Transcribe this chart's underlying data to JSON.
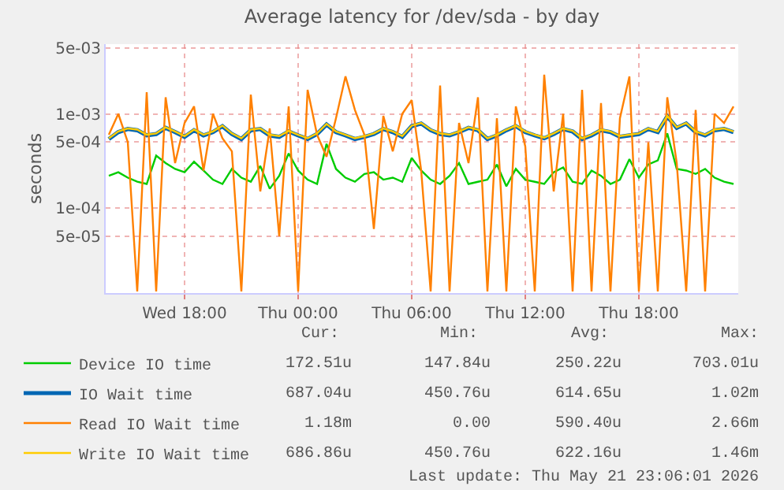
{
  "chart_data": {
    "type": "line",
    "title": "Average latency for /dev/sda - by day",
    "ylabel": "seconds",
    "x": [
      "2026-05-20T14:00",
      "2026-05-20T14:30",
      "2026-05-20T15:00",
      "2026-05-20T15:30",
      "2026-05-20T16:00",
      "2026-05-20T16:30",
      "2026-05-20T17:00",
      "2026-05-20T17:30",
      "2026-05-20T18:00",
      "2026-05-20T18:30",
      "2026-05-20T19:00",
      "2026-05-20T19:30",
      "2026-05-20T20:00",
      "2026-05-20T20:30",
      "2026-05-20T21:00",
      "2026-05-20T21:30",
      "2026-05-20T22:00",
      "2026-05-20T22:30",
      "2026-05-20T23:00",
      "2026-05-20T23:30",
      "2026-05-21T00:00",
      "2026-05-21T00:30",
      "2026-05-21T01:00",
      "2026-05-21T01:30",
      "2026-05-21T02:00",
      "2026-05-21T02:30",
      "2026-05-21T03:00",
      "2026-05-21T03:30",
      "2026-05-21T04:00",
      "2026-05-21T04:30",
      "2026-05-21T05:00",
      "2026-05-21T05:30",
      "2026-05-21T06:00",
      "2026-05-21T06:30",
      "2026-05-21T07:00",
      "2026-05-21T07:30",
      "2026-05-21T08:00",
      "2026-05-21T08:30",
      "2026-05-21T09:00",
      "2026-05-21T09:30",
      "2026-05-21T10:00",
      "2026-05-21T10:30",
      "2026-05-21T11:00",
      "2026-05-21T11:30",
      "2026-05-21T12:00",
      "2026-05-21T12:30",
      "2026-05-21T13:00",
      "2026-05-21T13:30",
      "2026-05-21T14:00",
      "2026-05-21T14:30",
      "2026-05-21T15:00",
      "2026-05-21T15:30",
      "2026-05-21T16:00",
      "2026-05-21T16:30",
      "2026-05-21T17:00",
      "2026-05-21T17:30",
      "2026-05-21T18:00",
      "2026-05-21T18:30",
      "2026-05-21T19:00",
      "2026-05-21T19:30",
      "2026-05-21T20:00",
      "2026-05-21T20:30",
      "2026-05-21T21:00",
      "2026-05-21T21:30",
      "2026-05-21T22:00",
      "2026-05-21T22:30",
      "2026-05-21T23:00"
    ],
    "series": [
      {
        "name": "Device IO time",
        "color": "#00cc00",
        "values": [
          0.00022,
          0.00024,
          0.00021,
          0.00019,
          0.00018,
          0.00036,
          0.0003,
          0.00026,
          0.00024,
          0.00031,
          0.00025,
          0.0002,
          0.00018,
          0.00026,
          0.00021,
          0.00019,
          0.00028,
          0.00016,
          0.00022,
          0.00038,
          0.00025,
          0.0002,
          0.00018,
          0.00048,
          0.00026,
          0.00021,
          0.00019,
          0.00023,
          0.00024,
          0.0002,
          0.00021,
          0.00019,
          0.00034,
          0.00025,
          0.0002,
          0.00018,
          0.00022,
          0.0003,
          0.00018,
          0.00019,
          0.0002,
          0.00029,
          0.00017,
          0.00026,
          0.0002,
          0.00019,
          0.00018,
          0.00024,
          0.00027,
          0.00019,
          0.00018,
          0.00025,
          0.00022,
          0.00018,
          0.0002,
          0.00033,
          0.00021,
          0.00029,
          0.00032,
          0.00062,
          0.00026,
          0.00025,
          0.00023,
          0.00026,
          0.00021,
          0.00019,
          0.00018
        ]
      },
      {
        "name": "IO Wait time",
        "color": "#0066b3",
        "values": [
          0.00054,
          0.00064,
          0.00069,
          0.00067,
          0.00059,
          0.00061,
          0.00071,
          0.00064,
          0.00057,
          0.00067,
          0.00059,
          0.00064,
          0.00074,
          0.00061,
          0.00054,
          0.00067,
          0.00069,
          0.00059,
          0.00057,
          0.00065,
          0.00059,
          0.00054,
          0.00061,
          0.00077,
          0.00064,
          0.00059,
          0.00054,
          0.00057,
          0.00061,
          0.00069,
          0.00064,
          0.00057,
          0.00074,
          0.00079,
          0.00067,
          0.00061,
          0.00059,
          0.00064,
          0.00071,
          0.00067,
          0.00054,
          0.00059,
          0.00067,
          0.00074,
          0.00064,
          0.00059,
          0.00055,
          0.00061,
          0.00069,
          0.00065,
          0.00054,
          0.00059,
          0.00067,
          0.00064,
          0.00057,
          0.00059,
          0.00061,
          0.00069,
          0.00064,
          0.00094,
          0.00071,
          0.00079,
          0.00064,
          0.00059,
          0.00067,
          0.00069,
          0.00064
        ]
      },
      {
        "name": "Read IO Wait time",
        "color": "#ff8000",
        "values": [
          0.0006,
          0.001,
          0.0005,
          1.3e-05,
          0.0017,
          1.3e-05,
          0.0015,
          0.0003,
          0.0008,
          0.0012,
          0.00025,
          0.001,
          0.00055,
          0.0004,
          1.3e-05,
          0.0016,
          0.00015,
          0.0007,
          5e-05,
          0.0012,
          1.3e-05,
          0.0018,
          0.0006,
          0.00035,
          0.0009,
          0.0025,
          0.0011,
          0.0006,
          6e-05,
          0.00095,
          0.0004,
          0.001,
          0.0014,
          0.00025,
          1.3e-05,
          0.002,
          1.3e-05,
          0.0008,
          0.0003,
          0.0015,
          1.3e-05,
          0.0009,
          1.3e-05,
          0.0012,
          0.00045,
          1.3e-05,
          0.0026,
          0.00015,
          0.001,
          1.3e-05,
          0.0018,
          1.3e-05,
          0.0013,
          1.3e-05,
          0.0009,
          0.0025,
          1.3e-05,
          0.0005,
          1.3e-05,
          0.0015,
          0.0003,
          1.3e-05,
          0.0011,
          1.3e-05,
          0.001,
          0.0008,
          0.0012
        ]
      },
      {
        "name": "Write IO Wait time",
        "color": "#ffcc00",
        "values": [
          0.00055,
          0.00065,
          0.0007,
          0.00068,
          0.0006,
          0.00062,
          0.00072,
          0.00065,
          0.00058,
          0.00068,
          0.0006,
          0.00065,
          0.00075,
          0.00062,
          0.00055,
          0.00068,
          0.0007,
          0.0006,
          0.00058,
          0.00066,
          0.0006,
          0.00055,
          0.00062,
          0.00078,
          0.00065,
          0.0006,
          0.00055,
          0.00058,
          0.00062,
          0.0007,
          0.00065,
          0.00058,
          0.00075,
          0.0008,
          0.00068,
          0.00062,
          0.0006,
          0.00065,
          0.00072,
          0.00068,
          0.00055,
          0.0006,
          0.00068,
          0.00075,
          0.00065,
          0.0006,
          0.00056,
          0.00062,
          0.0007,
          0.00066,
          0.00055,
          0.0006,
          0.00068,
          0.00065,
          0.00058,
          0.0006,
          0.00062,
          0.0007,
          0.00065,
          0.00095,
          0.00072,
          0.0008,
          0.00065,
          0.0006,
          0.00068,
          0.0007,
          0.00065
        ]
      }
    ],
    "log": "y",
    "ylim": [
      1.25e-05,
      0.0055
    ],
    "yticks": [
      {
        "value": 5e-05,
        "label": "5e-05"
      },
      {
        "value": 0.0001,
        "label": "1e-04"
      },
      {
        "value": 0.0005,
        "label": "5e-04"
      },
      {
        "value": 0.001,
        "label": "1e-03"
      },
      {
        "value": 0.005,
        "label": "5e-03"
      }
    ],
    "xlim": [
      "2026-05-20T13:50",
      "2026-05-21T23:15"
    ],
    "xticks": [
      {
        "value": "2026-05-20T18:00",
        "label": "Wed 18:00"
      },
      {
        "value": "2026-05-21T00:00",
        "label": "Thu 00:00"
      },
      {
        "value": "2026-05-21T06:00",
        "label": "Thu 06:00"
      },
      {
        "value": "2026-05-21T12:00",
        "label": "Thu 12:00"
      },
      {
        "value": "2026-05-21T18:00",
        "label": "Thu 18:00"
      }
    ],
    "grid": true,
    "legend": "bottom left",
    "line_style": "solid",
    "marker": "none",
    "annotations": [
      "Cur:",
      "Min:",
      "Avg:",
      "Max:",
      "172.51u",
      "147.84u",
      "250.22u",
      "703.01u",
      "687.04u",
      "450.76u",
      "614.65u",
      "1.02m",
      "1.18m",
      "0.00",
      "590.40u",
      "2.66m",
      "686.86u",
      "450.76u",
      "622.16u",
      "1.46m",
      "Last update: Thu May 21 23:06:01 2026"
    ]
  }
}
